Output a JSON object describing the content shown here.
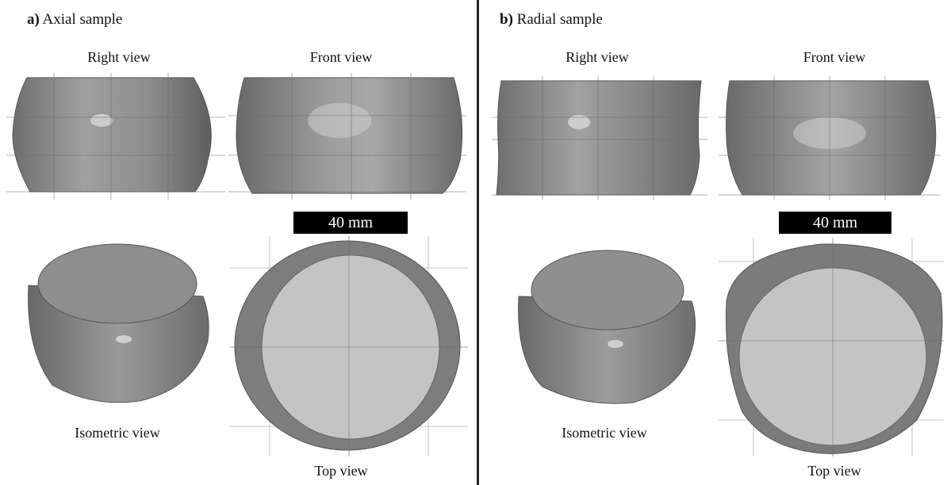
{
  "panels": [
    {
      "letter": "a)",
      "title": "Axial sample",
      "views": {
        "right": "Right view",
        "front": "Front view",
        "isometric": "Isometric view",
        "top": "Top view"
      },
      "scale": "40 mm"
    },
    {
      "letter": "b)",
      "title": "Radial sample",
      "views": {
        "right": "Right view",
        "front": "Front view",
        "isometric": "Isometric view",
        "top": "Top view"
      },
      "scale": "40 mm"
    }
  ],
  "colors": {
    "solid_gray": "#8a8a8a",
    "cut_face": "#bdbdbd",
    "grid": "#9a9a9a",
    "divider": "#222222"
  }
}
